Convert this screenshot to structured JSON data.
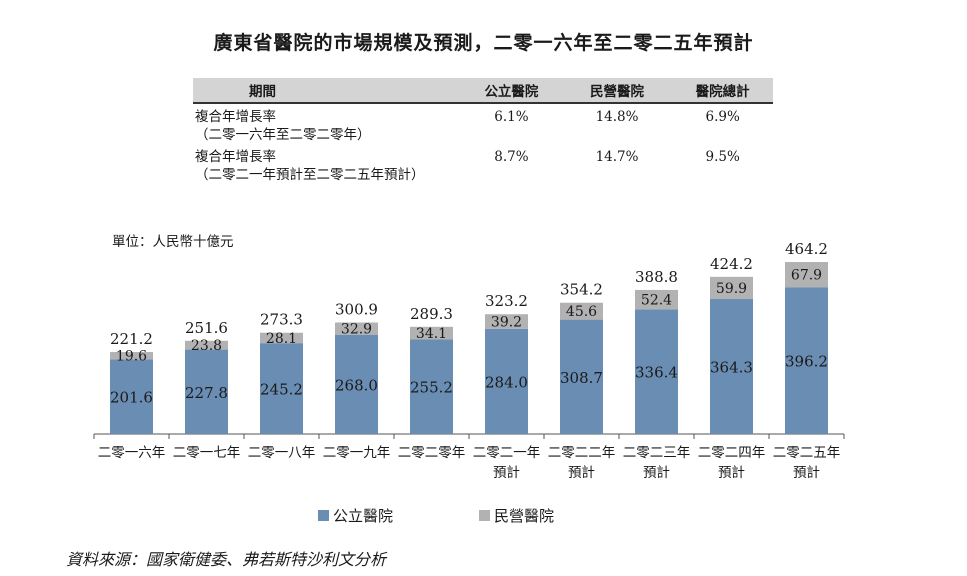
{
  "title": "廣東省醫院的市場規模及預測，二零一六年至二零二五年預計",
  "cagr_table": {
    "headers": [
      "期間",
      "公立醫院",
      "民營醫院",
      "醫院總計"
    ],
    "rows": [
      {
        "label_line1": "複合年增長率",
        "label_line2": "（二零一六年至二零二零年）",
        "public": "6.1%",
        "private": "14.8%",
        "total": "6.9%"
      },
      {
        "label_line1": "複合年增長率",
        "label_line2": "（二零二一年預計至二零二五年預計）",
        "public": "8.7%",
        "private": "14.7%",
        "total": "9.5%"
      }
    ]
  },
  "unit_label": "單位：人民幣十億元",
  "chart_data": {
    "type": "bar",
    "stacked": true,
    "categories": [
      [
        "二零一六年"
      ],
      [
        "二零一七年"
      ],
      [
        "二零一八年"
      ],
      [
        "二零一九年"
      ],
      [
        "二零二零年"
      ],
      [
        "二零二一年",
        "預計"
      ],
      [
        "二零二二年",
        "預計"
      ],
      [
        "二零二三年",
        "預計"
      ],
      [
        "二零二四年",
        "預計"
      ],
      [
        "二零二五年",
        "預計"
      ]
    ],
    "series": [
      {
        "name": "公立醫院",
        "color": "#6a8db4",
        "values": [
          201.6,
          227.8,
          245.2,
          268.0,
          255.2,
          284.0,
          308.7,
          336.4,
          364.3,
          396.2
        ]
      },
      {
        "name": "民營醫院",
        "color": "#b2b2b2",
        "values": [
          19.6,
          23.8,
          28.1,
          32.9,
          34.1,
          39.2,
          45.6,
          52.4,
          59.9,
          67.9
        ]
      }
    ],
    "totals": [
      221.2,
      251.6,
      273.3,
      300.9,
      289.3,
      323.2,
      354.2,
      388.8,
      424.2,
      464.2
    ],
    "legend_position": "bottom",
    "ylim": [
      0,
      464.2
    ]
  },
  "source": "資料來源：國家衛健委、弗若斯特沙利文分析"
}
